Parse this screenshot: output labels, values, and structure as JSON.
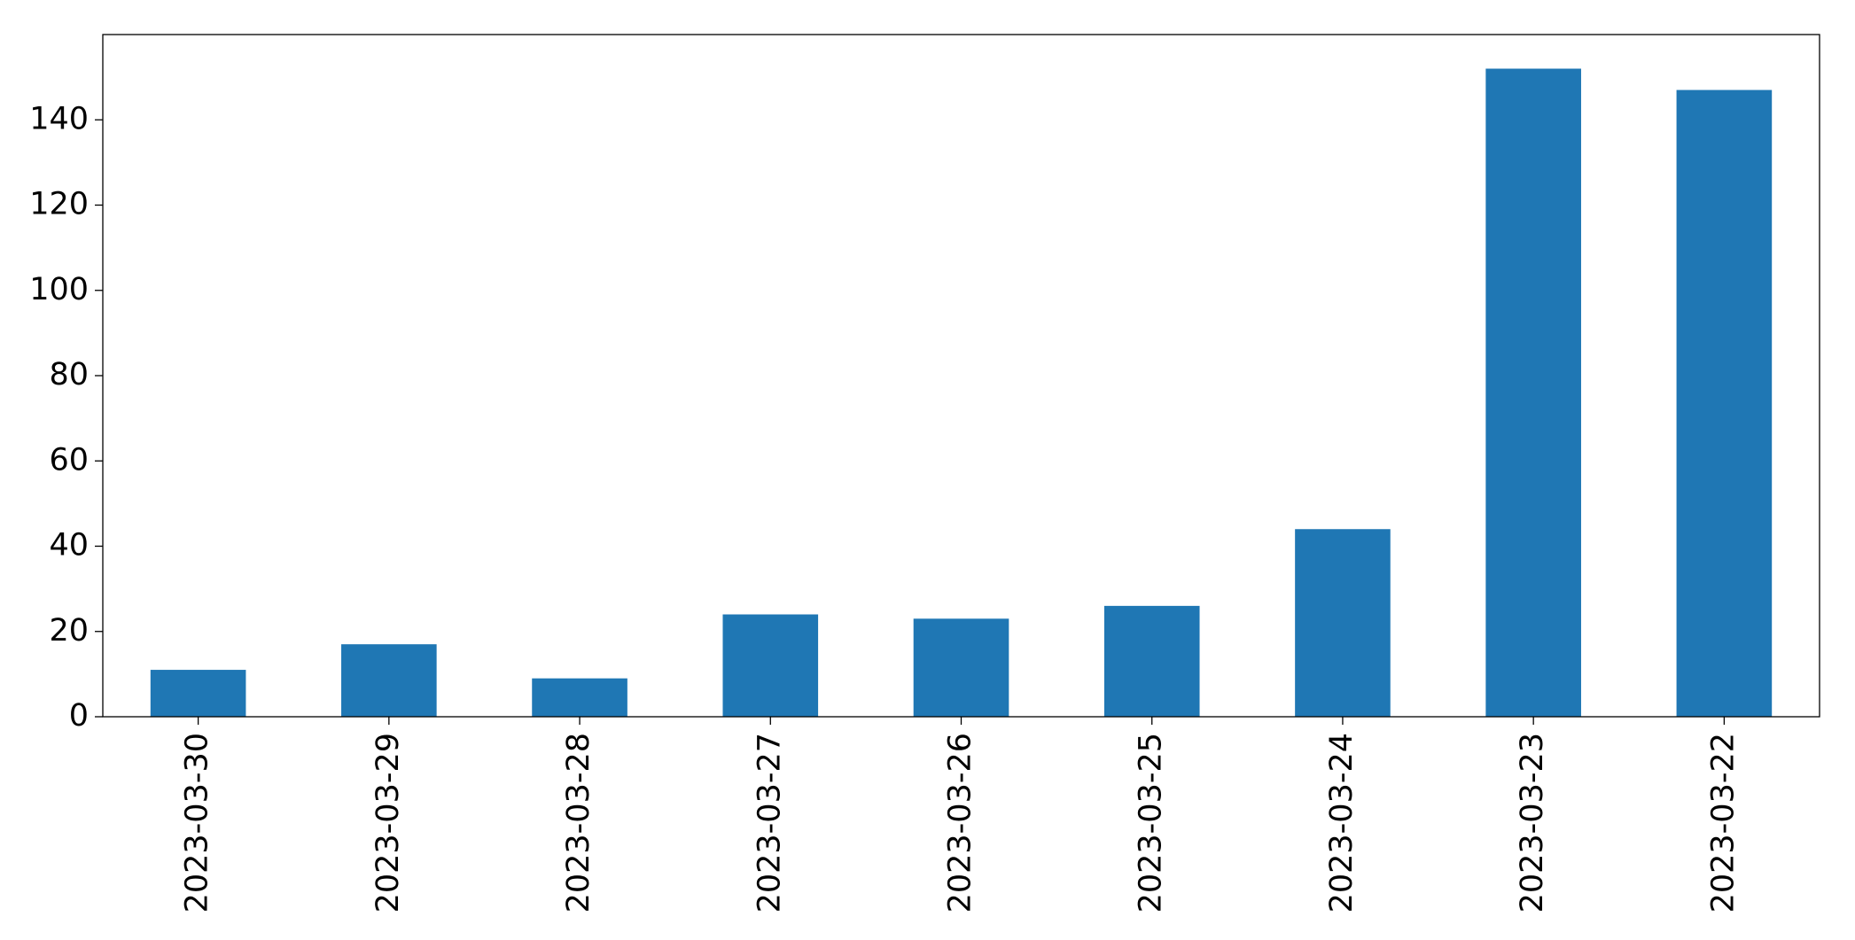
{
  "chart_data": {
    "type": "bar",
    "categories": [
      "2023-03-30",
      "2023-03-29",
      "2023-03-28",
      "2023-03-27",
      "2023-03-26",
      "2023-03-25",
      "2023-03-24",
      "2023-03-23",
      "2023-03-22"
    ],
    "values": [
      11,
      17,
      9,
      24,
      23,
      26,
      44,
      152,
      147
    ],
    "color": "#1f77b4",
    "ylim": [
      0,
      160
    ],
    "yticks": [
      0,
      20,
      40,
      60,
      80,
      100,
      120,
      140
    ],
    "grid": false
  }
}
